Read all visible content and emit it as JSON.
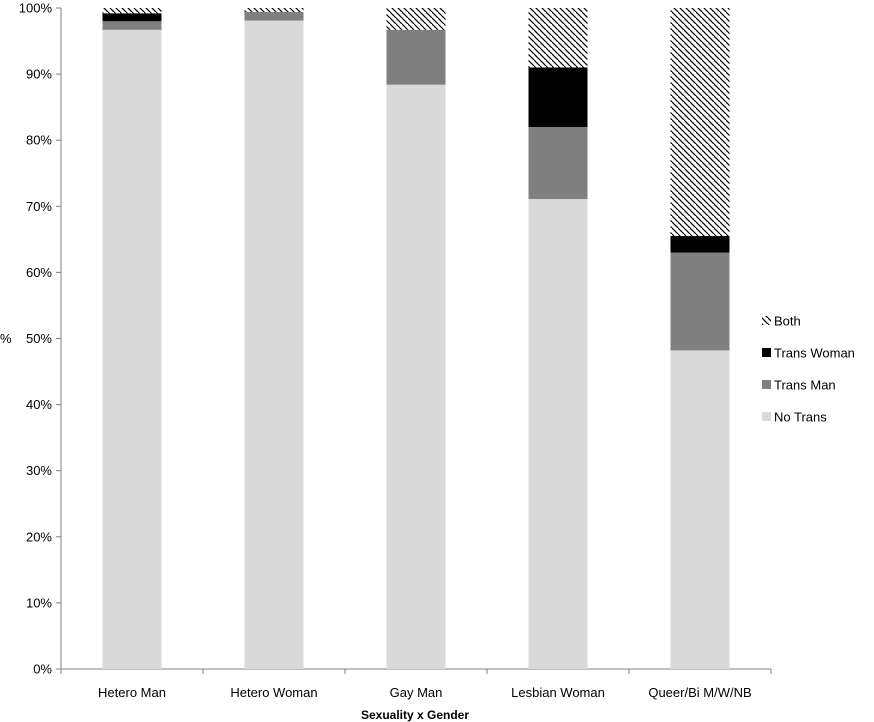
{
  "chart_data": {
    "type": "bar",
    "stacked": true,
    "categories": [
      "Hetero Man",
      "Hetero Woman",
      "Gay Man",
      "Lesbian Woman",
      "Queer/Bi M/W/NB"
    ],
    "series": [
      {
        "name": "No Trans",
        "color": "#d9d9d9",
        "pattern": "solid",
        "values": [
          96.7,
          98.1,
          88.4,
          71.1,
          48.2
        ]
      },
      {
        "name": "Trans Man",
        "color": "#7f7f7f",
        "pattern": "solid",
        "values": [
          1.3,
          1.3,
          8.3,
          10.9,
          14.8
        ]
      },
      {
        "name": "Trans Woman",
        "color": "#000000",
        "pattern": "solid",
        "values": [
          1.2,
          0.0,
          0.0,
          9.0,
          2.5
        ]
      },
      {
        "name": "Both",
        "color": "#000000",
        "pattern": "diagonal-hatch",
        "values": [
          0.8,
          0.6,
          3.3,
          9.0,
          34.5
        ]
      }
    ],
    "y_ticks": [
      "0%",
      "10%",
      "20%",
      "30%",
      "40%",
      "50%",
      "60%",
      "70%",
      "80%",
      "90%",
      "100%"
    ],
    "ylim": [
      0,
      100
    ],
    "xlabel": "Sexuality x Gender",
    "ylabel": "%",
    "legend_position": "right",
    "legend_order": [
      "Both",
      "Trans Woman",
      "Trans Man",
      "No Trans"
    ],
    "grid": false
  }
}
